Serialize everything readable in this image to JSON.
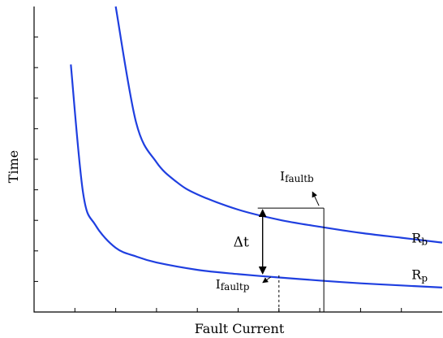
{
  "chart_data": {
    "type": "line",
    "title": "",
    "xlabel": "Fault Current",
    "ylabel": "Time",
    "xlim": [
      0,
      10
    ],
    "ylim": [
      0,
      10
    ],
    "ticks": {
      "x_count": 10,
      "y_count": 10,
      "labels": false
    },
    "colors": {
      "curve": "#1f3fe0",
      "axis": "#000000",
      "annot": "#000000"
    },
    "series": [
      {
        "name": "Rb",
        "label": "R",
        "sub": "b",
        "x": [
          2.0,
          2.5,
          3.0,
          3.5,
          4.0,
          5.0,
          6.0,
          7.0,
          8.0,
          9.0,
          10.0
        ],
        "y": [
          10.0,
          6.2,
          4.9,
          4.25,
          3.85,
          3.35,
          3.02,
          2.79,
          2.59,
          2.43,
          2.27
        ]
      },
      {
        "name": "Rp",
        "label": "R",
        "sub": "p",
        "x": [
          0.9,
          1.2,
          1.5,
          2.0,
          2.5,
          3.0,
          4.0,
          5.0,
          6.0,
          7.0,
          8.0,
          9.0,
          10.0
        ],
        "y": [
          8.1,
          3.9,
          2.85,
          2.1,
          1.82,
          1.62,
          1.38,
          1.24,
          1.13,
          1.03,
          0.94,
          0.87,
          0.8
        ]
      }
    ],
    "annotations": {
      "delta_t": {
        "label": "Δt",
        "x": 5.6,
        "y_from": 1.2,
        "y_to": 3.4
      },
      "ifault_b": {
        "label": "I",
        "sub": "faultb",
        "x": 7.1,
        "y": 3.4
      },
      "ifault_p": {
        "label": "I",
        "sub": "faultp",
        "x": 6.0,
        "y": 1.2
      }
    }
  }
}
